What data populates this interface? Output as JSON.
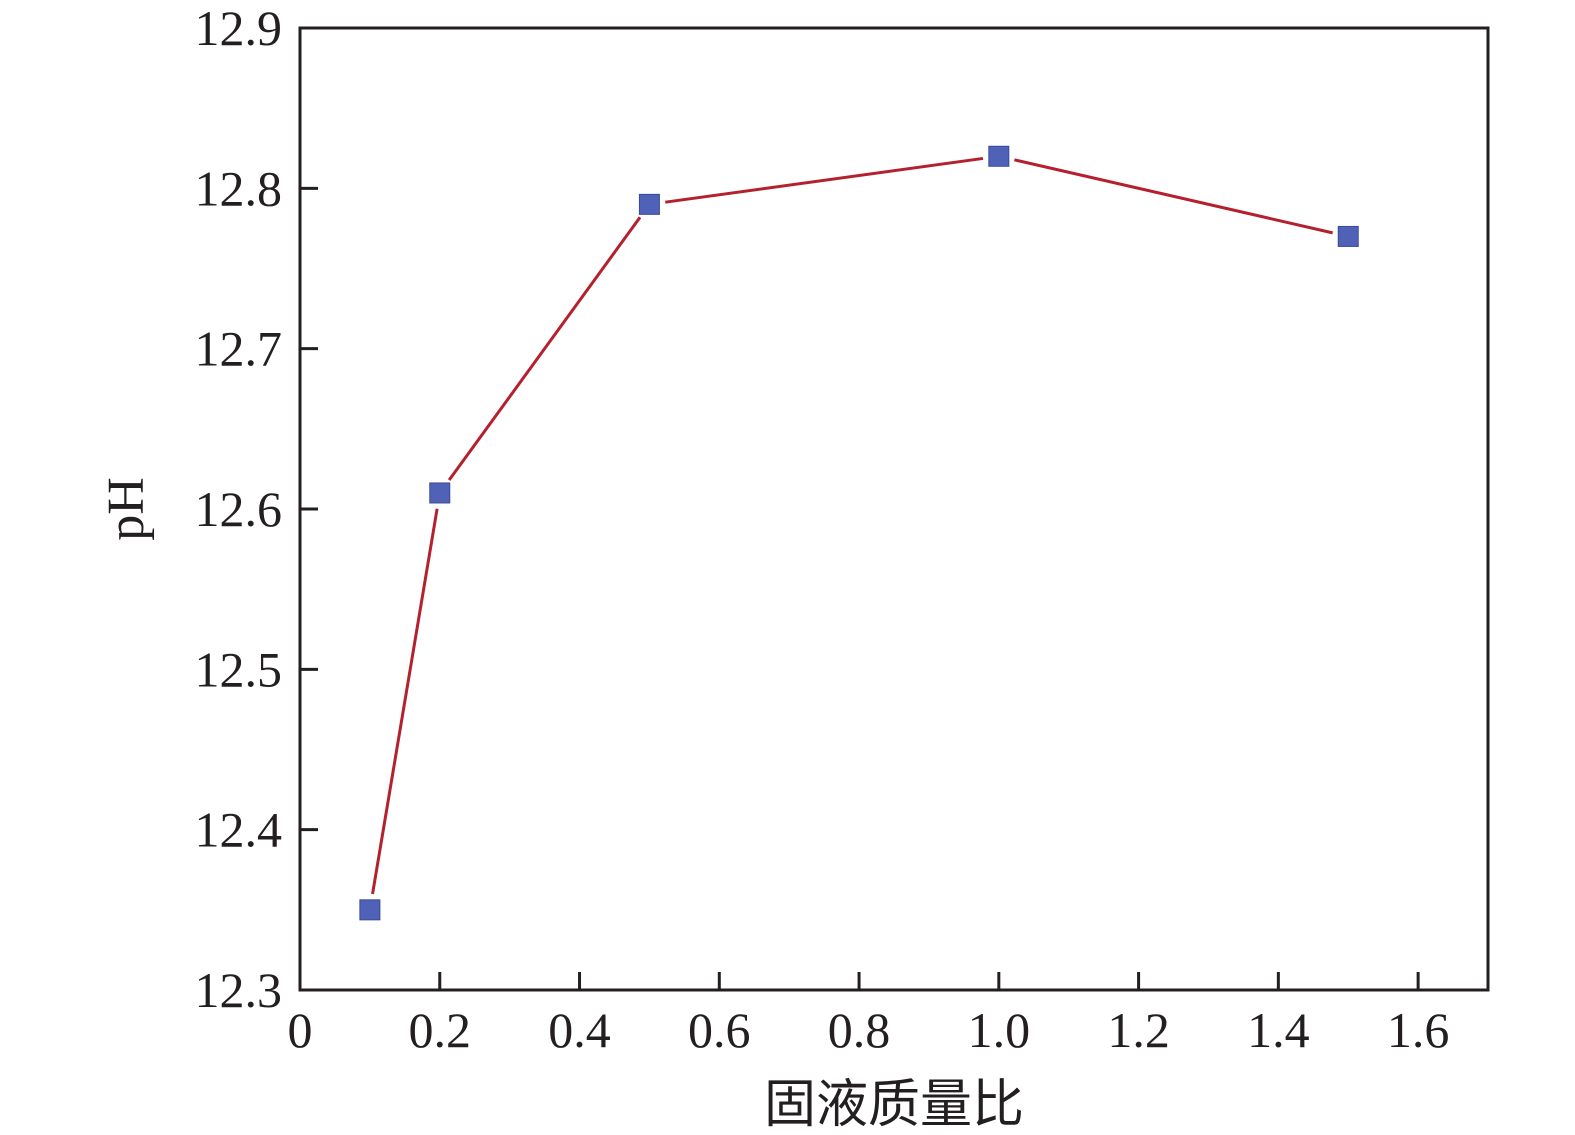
{
  "chart_data": {
    "type": "line",
    "title": "",
    "xlabel": "固液质量比",
    "ylabel": "pH",
    "xlim": [
      0,
      1.7
    ],
    "ylim": [
      12.3,
      12.9
    ],
    "x_ticks": [
      "0",
      "0.2",
      "0.4",
      "0.6",
      "0.8",
      "1.0",
      "1.2",
      "1.4",
      "1.6"
    ],
    "y_ticks": [
      "12.3",
      "12.4",
      "12.5",
      "12.6",
      "12.7",
      "12.8",
      "12.9"
    ],
    "grid": false,
    "legend": "none",
    "series": [
      {
        "x": [
          0.1,
          0.2,
          0.5,
          1.0,
          1.5
        ],
        "y": [
          12.35,
          12.61,
          12.79,
          12.82,
          12.77
        ],
        "line_color": "#b5202e",
        "marker": "square",
        "marker_color": "#4f62b8"
      }
    ]
  }
}
